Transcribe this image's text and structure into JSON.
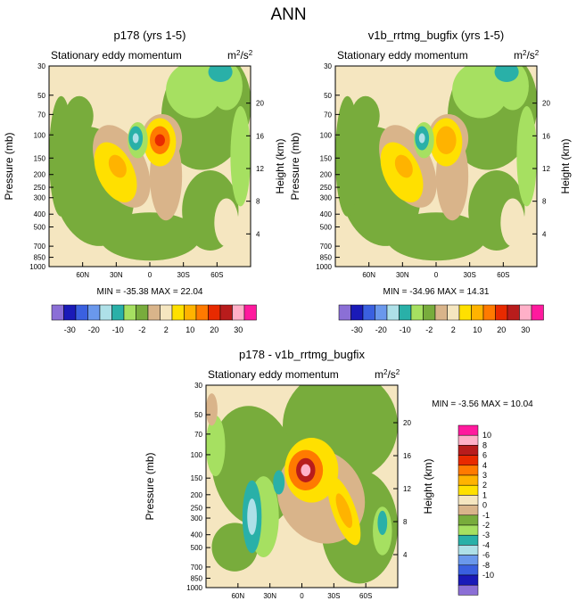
{
  "figure_title": "ANN",
  "palette": [
    "#8b6fd6",
    "#1a1ab8",
    "#3a60e0",
    "#6a98ec",
    "#aee0e8",
    "#29b0a8",
    "#a6e061",
    "#78ac3c",
    "#d9b48a",
    "#f5e6c0",
    "#ffe000",
    "#ffb300",
    "#ff7a00",
    "#e82a00",
    "#b81c1c",
    "#ffb0c8",
    "#ff1a9e"
  ],
  "chart_data": [
    {
      "type": "contour",
      "title": "p178 (yrs 1-5)",
      "subtitle": "Stationary eddy momentum",
      "units": "m²/s²",
      "units_base": "m",
      "units_sup_1": "2",
      "units_mid": "/s",
      "units_sup_2": "2",
      "ylabel": "Pressure (mb)",
      "y2label": "Height (km)",
      "y_ticks": [
        "30",
        "50",
        "70",
        "100",
        "150",
        "200",
        "250",
        "300",
        "400",
        "500",
        "700",
        "850",
        "1000"
      ],
      "y2_ticks": [
        "20",
        "16",
        "12",
        "8",
        "4"
      ],
      "x_ticks": [
        "60N",
        "30N",
        "0",
        "30S",
        "60S"
      ],
      "min_label": "MIN = -35.38  MAX =  22.04",
      "min": -35.38,
      "max": 22.04,
      "colorbar_labels": [
        "-30",
        "-20",
        "-10",
        "-2",
        "2",
        "10",
        "20",
        "30"
      ]
    },
    {
      "type": "contour",
      "title": "v1b_rrtmg_bugfix (yrs 1-5)",
      "subtitle": "Stationary eddy momentum",
      "units": "m²/s²",
      "units_base": "m",
      "units_sup_1": "2",
      "units_mid": "/s",
      "units_sup_2": "2",
      "ylabel": "Pressure (mb)",
      "y2label": "Height (km)",
      "y_ticks": [
        "30",
        "50",
        "70",
        "100",
        "150",
        "200",
        "250",
        "300",
        "400",
        "500",
        "700",
        "850",
        "1000"
      ],
      "y2_ticks": [
        "20",
        "16",
        "12",
        "8",
        "4"
      ],
      "x_ticks": [
        "60N",
        "30N",
        "0",
        "30S",
        "60S"
      ],
      "min_label": "MIN = -34.96  MAX =  14.31",
      "min": -34.96,
      "max": 14.31,
      "colorbar_labels": [
        "-30",
        "-20",
        "-10",
        "-2",
        "2",
        "10",
        "20",
        "30"
      ]
    },
    {
      "type": "contour",
      "title": "p178 - v1b_rrtmg_bugfix",
      "subtitle": "Stationary eddy momentum",
      "units": "m²/s²",
      "units_base": "m",
      "units_sup_1": "2",
      "units_mid": "/s",
      "units_sup_2": "2",
      "ylabel": "Pressure (mb)",
      "y2label": "Height (km)",
      "y_ticks": [
        "30",
        "50",
        "70",
        "100",
        "150",
        "200",
        "250",
        "300",
        "400",
        "500",
        "700",
        "850",
        "1000"
      ],
      "y2_ticks": [
        "20",
        "16",
        "12",
        "8",
        "4"
      ],
      "x_ticks": [
        "60N",
        "30N",
        "0",
        "30S",
        "60S"
      ],
      "min_label": "MIN =  -3.56  MAX =  10.04",
      "min": -3.56,
      "max": 10.04,
      "colorbar_labels": [
        "10",
        "8",
        "6",
        "4",
        "3",
        "2",
        "1",
        "0",
        "-1",
        "-2",
        "-3",
        "-4",
        "-6",
        "-8",
        "-10"
      ]
    }
  ]
}
